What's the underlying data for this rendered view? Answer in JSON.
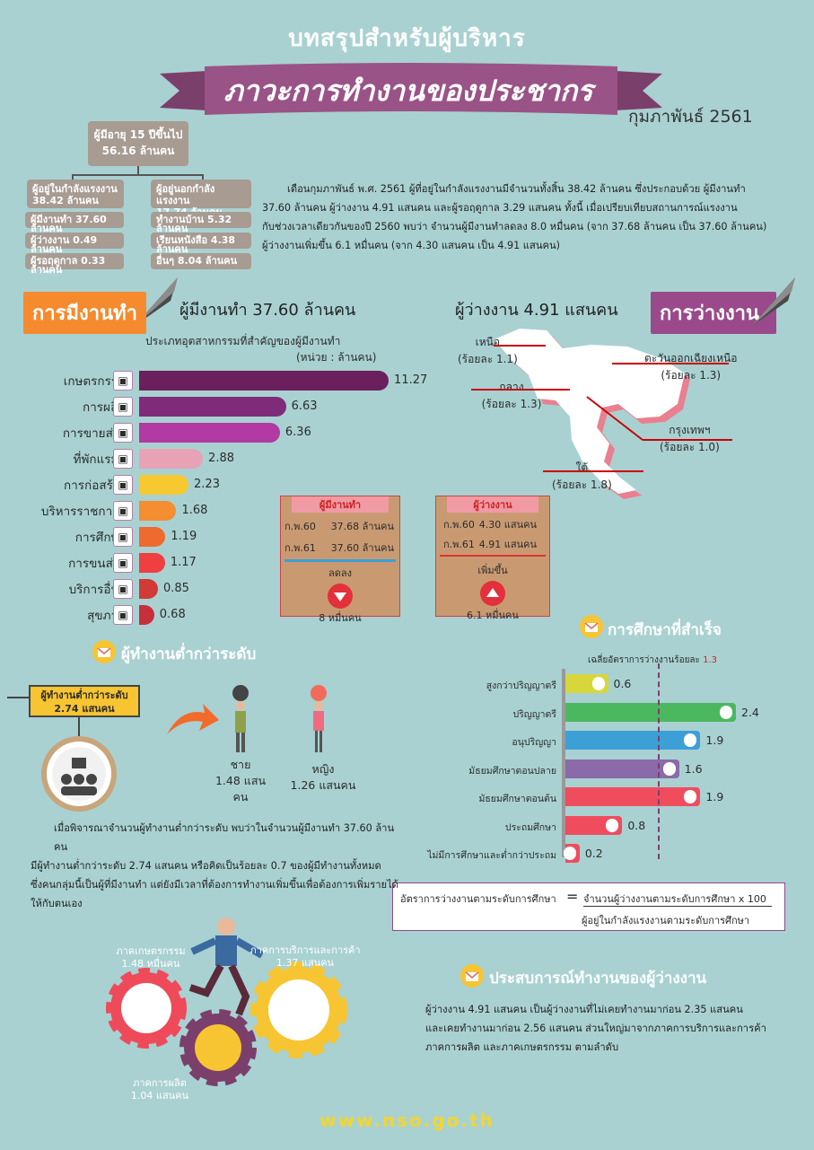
{
  "header": {
    "title": "บทสรุปสำหรับผู้บริหาร",
    "subtitle": "ภาวะการทำงานของประชากร",
    "month": "กุมภาพันธ์  2561"
  },
  "tree": {
    "root": {
      "label": "ผู้มีอายุ 15 ปีขึ้นไป",
      "value": "56.16 ล้านคน"
    },
    "left": {
      "label": "ผู้อยู่ในกำลังแรงงาน",
      "value": "38.42 ล้านคน",
      "items": [
        "ผู้มีงานทำ 37.60 ล้านคน",
        "ผู้ว่างงาน 0.49 ล้านคน",
        "ผู้รอฤดูกาล 0.33 ล้านคน"
      ]
    },
    "right": {
      "label": "ผู้อยู่นอกกำลังแรงงาน",
      "value": "17.74 ล้านคน",
      "items": [
        "ทำงานบ้าน 5.32 ล้านคน",
        "เรียนหนังสือ 4.38 ล้านคน",
        "อื่นๆ 8.04 ล้านคน"
      ]
    }
  },
  "summary": [
    "เดือนกุมภาพันธ์ พ.ศ. 2561 ผู้ที่อยู่ในกำลังแรงงานมีจำนวนทั้งสิ้น 38.42 ล้านคน ซึ่งประกอบด้วย ผู้มีงานทำ",
    "37.60 ล้านคน ผู้ว่างงาน 4.91 แสนคน และผู้รอฤดูกาล 3.29 แสนคน ทั้งนี้ เมื่อเปรียบเทียบสถานการณ์แรงงาน",
    "กับช่วงเวลาเดียวกันของปี 2560 พบว่า จำนวนผู้มีงานทำลดลง 8.0 หมื่นคน (จาก 37.68 ล้านคน เป็น 37.60 ล้านคน)",
    "ผู้ว่างงานเพิ่มขึ้น 6.1 หมื่นคน (จาก 4.30 แสนคน เป็น 4.91 แสนคน)"
  ],
  "employed": {
    "tag": "การมีงานทำ",
    "heading": "ผู้มีงานทำ 37.60 ล้านคน",
    "chart_title": "ประเภทอุตสาหกรรมที่สำคัญของผู้มีงานทำ",
    "unit": "(หน่วย : ล้านคน)"
  },
  "chart_data": {
    "type": "bar",
    "categories": [
      "เกษตรกรรม",
      "การผลิต",
      "การขายส่งฯ",
      "ที่พักแรมฯ",
      "การก่อสร้าง",
      "บริหารราชการฯ",
      "การศึกษา",
      "การขนส่งฯ",
      "บริการอื่นๆ",
      "สุขภาพ"
    ],
    "values": [
      11.27,
      6.63,
      6.36,
      2.88,
      2.23,
      1.68,
      1.19,
      1.17,
      0.85,
      0.68
    ],
    "labels": [
      "11.27",
      "6.63",
      "6.36",
      "2.88",
      "2.23",
      "1.68",
      "1.19",
      "1.17",
      "0.85",
      "0.68"
    ],
    "colors": [
      "#6b1f5c",
      "#7f2b7a",
      "#b13aa3",
      "#e8a2b5",
      "#f6c930",
      "#f48e30",
      "#ef6a2e",
      "#ef3f40",
      "#d13a36",
      "#c82f3a"
    ],
    "xlim": [
      0,
      12
    ]
  },
  "compare": {
    "employed": {
      "title": "ผู้มีงานทำ",
      "row1": [
        "ก.พ.60",
        "37.68 ล้านคน"
      ],
      "row2": [
        "ก.พ.61",
        "37.60 ล้านคน"
      ],
      "change": "ลดลง",
      "amount": "8 หมื่นคน"
    },
    "unemployed": {
      "title": "ผู้ว่างงาน",
      "row1": [
        "ก.พ.60",
        "4.30 แสนคน"
      ],
      "row2": [
        "ก.พ.61",
        "4.91 แสนคน"
      ],
      "change": "เพิ่มขึ้น",
      "amount": "6.1 หมื่นคน"
    }
  },
  "unemployed": {
    "tag": "การว่างงาน",
    "heading": "ผู้ว่างงาน 4.91 แสนคน",
    "regions": [
      {
        "name": "เหนือ",
        "rate": "(ร้อยละ 1.1)"
      },
      {
        "name": "ตะวันออกเฉียงเหนือ",
        "rate": "(ร้อยละ 1.3)"
      },
      {
        "name": "กลาง",
        "rate": "(ร้อยละ 1.3)"
      },
      {
        "name": "กรุงเทพฯ",
        "rate": "(ร้อยละ 1.0)"
      },
      {
        "name": "ใต้",
        "rate": "(ร้อยละ 1.8)"
      }
    ]
  },
  "education": {
    "heading": "การศึกษาที่สำเร็จ",
    "avg_label": "เฉลี่ยอัตราการว่างงานร้อยละ",
    "avg_value": "1.3",
    "categories": [
      "สูงกว่าปริญญาตรี",
      "ปริญญาตรี",
      "อนุปริญญา",
      "มัธยมศึกษาตอนปลาย",
      "มัธยมศึกษาตอนต้น",
      "ประถมศึกษา",
      "ไม่มีการศึกษาและต่ำกว่าประถม"
    ],
    "values": [
      0.6,
      2.4,
      1.9,
      1.6,
      1.9,
      0.8,
      0.2
    ],
    "labels": [
      "0.6",
      "2.4",
      "1.9",
      "1.6",
      "1.9",
      "0.8",
      "0.2"
    ],
    "colors": [
      "#d7d73b",
      "#4bb860",
      "#3c9fd6",
      "#8a6aa9",
      "#ef4d5e",
      "#ef4d5e",
      "#ef4d5e"
    ],
    "formula_left": "อัตราการว่างงานตามระดับการศึกษา",
    "formula_eq": "=",
    "formula_top": "จำนวนผู้ว่างงานตามระดับการศึกษา x 100",
    "formula_bottom": "ผู้อยู่ในกำลังแรงงานตามระดับการศึกษา"
  },
  "under": {
    "heading": "ผู้ทำงานต่ำกว่าระดับ",
    "box_line1": "ผู้ทำงานต่ำกว่าระดับ",
    "box_line2": "2.74 แสนคน",
    "male_label": "ชาย",
    "male_value": "1.48 แสนคน",
    "female_label": "หญิง",
    "female_value": "1.26 แสนคน",
    "para": [
      "เมื่อพิจารณาจำนวนผู้ทำงานต่ำกว่าระดับ พบว่าในจำนวนผู้มีงานทำ 37.60 ล้านคน",
      "มีผู้ทำงานต่ำกว่าระดับ 2.74 แสนคน หรือคิดเป็นร้อยละ 0.7 ของผู้มีทำงานทั้งหมด",
      "ซึ่งคนกลุ่มนี้เป็นผู้ที่มีงานทำ แต่ยังมีเวลาที่ต้องการทำงานเพิ่มขึ้นเพื่อต้องการเพิ่มรายได้",
      "ให้กับตนเอง"
    ]
  },
  "experience": {
    "heading": "ประสบการณ์ทำงานของผู้ว่างงาน",
    "para": [
      "ผู้ว่างงาน 4.91 แสนคน เป็นผู้ว่างงานที่ไม่เคยทำงานมาก่อน 2.35 แสนคน",
      "และเคยทำงานมาก่อน 2.56 แสนคน ส่วนใหญ่มาจากภาคการบริการและการค้า",
      "ภาคการผลิต และภาคเกษตรกรรม ตามลำดับ"
    ],
    "agri_label": "ภาคเกษตรกรรม",
    "agri_value": "1.48 หมื่นคน",
    "serv_label": "ภาคการบริการและการค้า",
    "serv_value": "1.37 แสนคน",
    "manu_label": "ภาคการผลิต",
    "manu_value": "1.04 แสนคน"
  },
  "footer": {
    "url": "www.nso.go.th"
  },
  "icons": [
    "envelope-check-icon",
    "gear-icon",
    "arrow-right-icon",
    "triangle-down-icon",
    "triangle-up-icon",
    "person-icon"
  ]
}
